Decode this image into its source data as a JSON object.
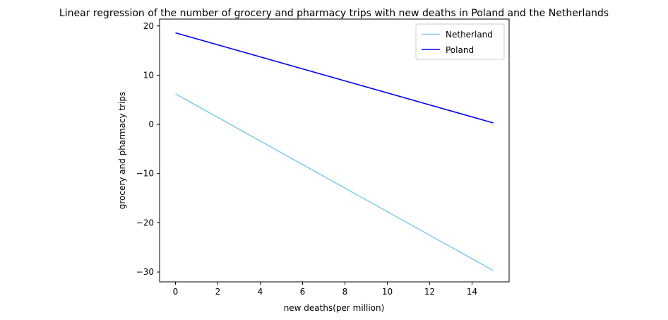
{
  "chart_data": {
    "type": "line",
    "title": "Linear regression of the number of grocery and pharmacy trips with new deaths in Poland and the Netherlands",
    "xlabel": "new deaths(per million)",
    "ylabel": "grocery and pharmacy trips",
    "xlim": [
      -0.75,
      15.75
    ],
    "ylim": [
      -32,
      21.4
    ],
    "xticks": [
      0,
      2,
      4,
      6,
      8,
      10,
      12,
      14
    ],
    "yticks": [
      -30,
      -20,
      -10,
      0,
      10,
      20
    ],
    "grid": false,
    "legend_position": "top-right",
    "series": [
      {
        "name": "Netherland",
        "color": "#87ceeb",
        "x": [
          0,
          15
        ],
        "y": [
          6.2,
          -29.7
        ]
      },
      {
        "name": "Poland",
        "color": "#0000ff",
        "x": [
          0,
          15
        ],
        "y": [
          18.6,
          0.3
        ]
      }
    ]
  }
}
